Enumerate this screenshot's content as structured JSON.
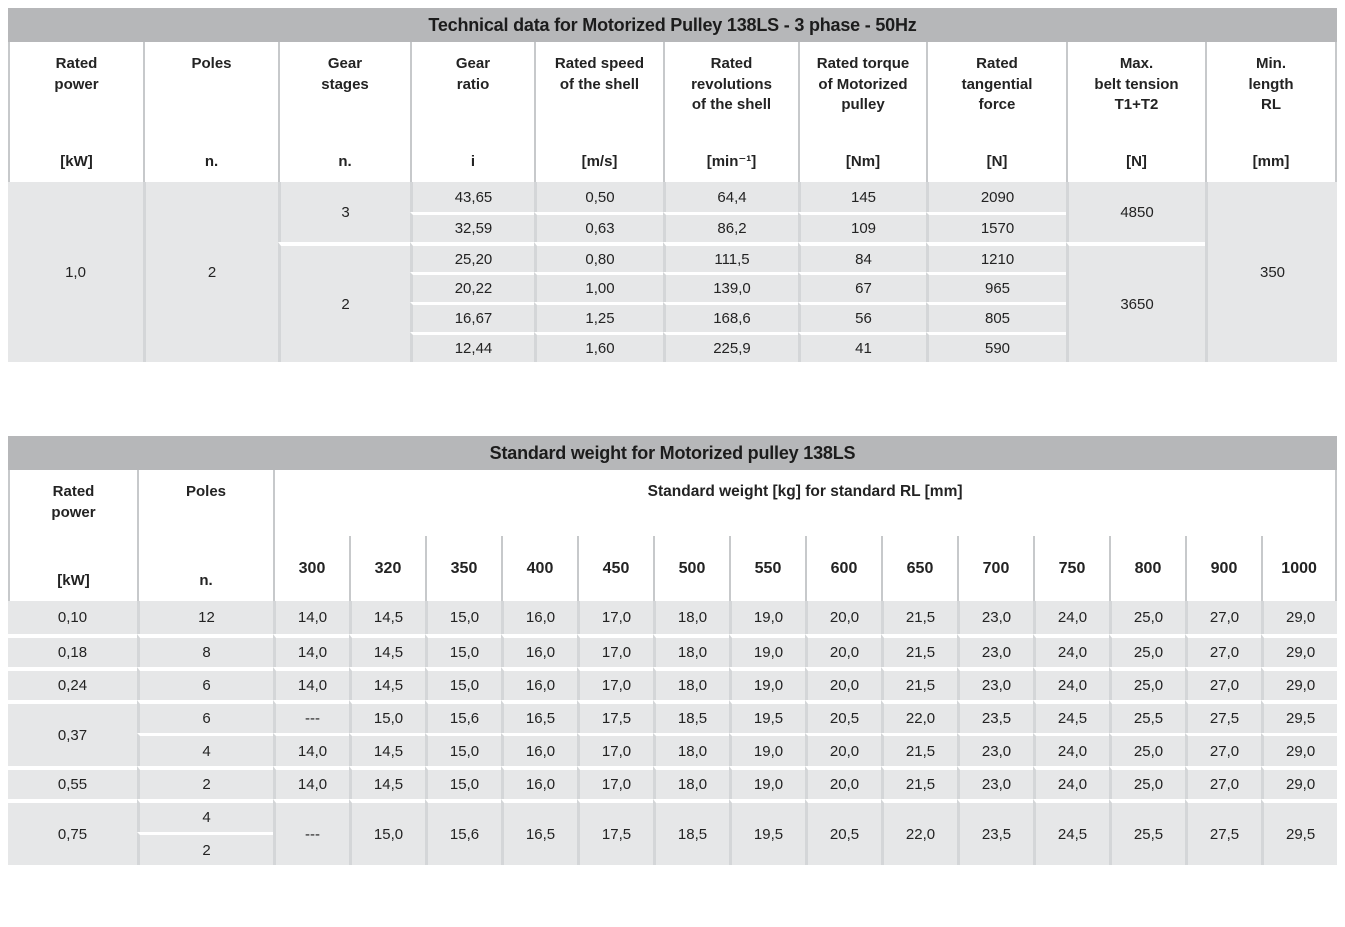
{
  "table1": {
    "title": "Technical data for Motorized Pulley 138LS - 3 phase - 50Hz",
    "columns": [
      {
        "key": "rated-power",
        "label": "Rated\npower",
        "unit": "[kW]"
      },
      {
        "key": "poles",
        "label": "Poles",
        "unit": "n."
      },
      {
        "key": "gear-stages",
        "label": "Gear\nstages",
        "unit": "n."
      },
      {
        "key": "gear-ratio",
        "label": "Gear\nratio",
        "unit": "i"
      },
      {
        "key": "shell-speed",
        "label": "Rated speed\nof the shell",
        "unit": "[m/s]"
      },
      {
        "key": "shell-revolutions",
        "label": "Rated\nrevolutions\nof the shell",
        "unit": "[min⁻¹]"
      },
      {
        "key": "rated-torque",
        "label": "Rated torque\nof Motorized\npulley",
        "unit": "[Nm]"
      },
      {
        "key": "tangential-force",
        "label": "Rated\ntangential\nforce",
        "unit": "[N]"
      },
      {
        "key": "belt-tension",
        "label": "Max.\nbelt tension\nT1+T2",
        "unit": "[N]"
      },
      {
        "key": "min-length",
        "label": "Min.\nlength\nRL",
        "unit": "[mm]"
      }
    ],
    "rated_power": "1,0",
    "poles": "2",
    "min_length_rl": "350",
    "groups": [
      {
        "gear_stages": "3",
        "belt_tension": "4850",
        "rows": [
          {
            "ratio": "43,65",
            "speed": "0,50",
            "rev": "64,4",
            "torque": "145",
            "force": "2090"
          },
          {
            "ratio": "32,59",
            "speed": "0,63",
            "rev": "86,2",
            "torque": "109",
            "force": "1570"
          }
        ]
      },
      {
        "gear_stages": "2",
        "belt_tension": "3650",
        "rows": [
          {
            "ratio": "25,20",
            "speed": "0,80",
            "rev": "111,5",
            "torque": "84",
            "force": "1210"
          },
          {
            "ratio": "20,22",
            "speed": "1,00",
            "rev": "139,0",
            "torque": "67",
            "force": "965"
          },
          {
            "ratio": "16,67",
            "speed": "1,25",
            "rev": "168,6",
            "torque": "56",
            "force": "805"
          },
          {
            "ratio": "12,44",
            "speed": "1,60",
            "rev": "225,9",
            "torque": "41",
            "force": "590"
          }
        ]
      }
    ]
  },
  "table2": {
    "title": "Standard weight for Motorized pulley 138LS",
    "col_power": {
      "label": "Rated\npower",
      "unit": "[kW]"
    },
    "col_poles": {
      "label": "Poles",
      "unit": "n."
    },
    "group_label": "Standard weight [kg] for standard RL [mm]",
    "rl_values": [
      "300",
      "320",
      "350",
      "400",
      "450",
      "500",
      "550",
      "600",
      "650",
      "700",
      "750",
      "800",
      "900",
      "1000"
    ],
    "rows": [
      {
        "power": "0,10",
        "subs": [
          {
            "poles": "12",
            "weights": [
              "14,0",
              "14,5",
              "15,0",
              "16,0",
              "17,0",
              "18,0",
              "19,0",
              "20,0",
              "21,5",
              "23,0",
              "24,0",
              "25,0",
              "27,0",
              "29,0"
            ]
          }
        ]
      },
      {
        "power": "0,18",
        "subs": [
          {
            "poles": "8",
            "weights": [
              "14,0",
              "14,5",
              "15,0",
              "16,0",
              "17,0",
              "18,0",
              "19,0",
              "20,0",
              "21,5",
              "23,0",
              "24,0",
              "25,0",
              "27,0",
              "29,0"
            ]
          }
        ]
      },
      {
        "power": "0,24",
        "subs": [
          {
            "poles": "6",
            "weights": [
              "14,0",
              "14,5",
              "15,0",
              "16,0",
              "17,0",
              "18,0",
              "19,0",
              "20,0",
              "21,5",
              "23,0",
              "24,0",
              "25,0",
              "27,0",
              "29,0"
            ]
          }
        ]
      },
      {
        "power": "0,37",
        "subs": [
          {
            "poles": "6",
            "weights": [
              "---",
              "15,0",
              "15,6",
              "16,5",
              "17,5",
              "18,5",
              "19,5",
              "20,5",
              "22,0",
              "23,5",
              "24,5",
              "25,5",
              "27,5",
              "29,5"
            ]
          },
          {
            "poles": "4",
            "weights": [
              "14,0",
              "14,5",
              "15,0",
              "16,0",
              "17,0",
              "18,0",
              "19,0",
              "20,0",
              "21,5",
              "23,0",
              "24,0",
              "25,0",
              "27,0",
              "29,0"
            ]
          }
        ]
      },
      {
        "power": "0,55",
        "subs": [
          {
            "poles": "2",
            "weights": [
              "14,0",
              "14,5",
              "15,0",
              "16,0",
              "17,0",
              "18,0",
              "19,0",
              "20,0",
              "21,5",
              "23,0",
              "24,0",
              "25,0",
              "27,0",
              "29,0"
            ]
          }
        ]
      },
      {
        "power": "0,75",
        "subs": [
          {
            "poles": "4",
            "weights": [
              "---",
              "15,0",
              "15,6",
              "16,5",
              "17,5",
              "18,5",
              "19,5",
              "20,5",
              "22,0",
              "23,5",
              "24,5",
              "25,5",
              "27,5",
              "29,5"
            ],
            "weight_rowspan": 2
          },
          {
            "poles": "2"
          }
        ]
      }
    ]
  }
}
